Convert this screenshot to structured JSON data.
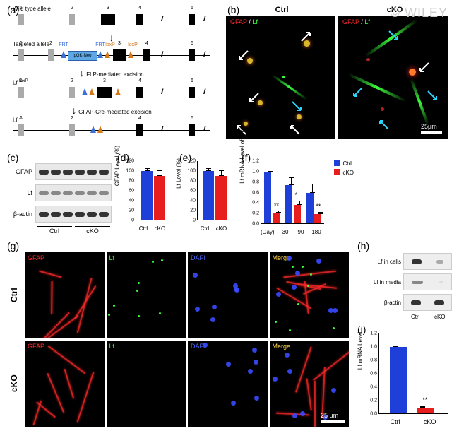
{
  "watermark": "© WILEY",
  "panel_a": {
    "rows": [
      {
        "title": "Wild type allele",
        "exons": [
          1,
          2,
          3,
          4,
          6
        ]
      },
      {
        "title": "Targeted allele",
        "neo": "pGK-Neo",
        "frt_label": "FRT",
        "loxp_label": "loxP"
      },
      {
        "title_html": "Lf loxP"
      },
      {
        "title_html": "Lf -/-"
      }
    ],
    "caption1": "FLP-mediated excision",
    "caption2": "GFAP-Cre-mediated excision"
  },
  "panel_b": {
    "titles": [
      "Ctrl",
      "cKO"
    ],
    "channel_gfap": "GFAP",
    "channel_lf": "Lf",
    "scalebar": "25µm",
    "gfap_color": "#ff2a2a",
    "lf_color": "#3aff3a",
    "arrow_white": "#ffffff",
    "arrow_cyan": "#29d6ff"
  },
  "panel_c": {
    "labels": [
      "GFAP",
      "Lf",
      "β-actin"
    ],
    "groups": [
      "Ctrl",
      "cKO"
    ]
  },
  "chart_de": {
    "ylabel_d": "GFAP Level (%)",
    "ylabel_e": "Lf Level (%)",
    "ymax": 120,
    "yticks": [
      0,
      20,
      40,
      60,
      80,
      100,
      120
    ],
    "ctrl": 100,
    "cko_d": 89,
    "cko_e": 89,
    "err_ctrl": 5,
    "err_cko": 12,
    "blue": "#1e3fd8",
    "red": "#e81e1e",
    "xlabels": [
      "Ctrl",
      "cKO"
    ]
  },
  "panel_f": {
    "ylabel": "Lf mRNA Level of Brain",
    "ymax": 1.2,
    "yticks": [
      "0.0",
      "0.2",
      "0.4",
      "0.6",
      "0.8",
      "1.0",
      "1.2"
    ],
    "days": [
      "30",
      "90",
      "180"
    ],
    "day_label": "(Day)",
    "ctrl": [
      1.0,
      0.74,
      0.58
    ],
    "cko": [
      0.2,
      0.36,
      0.18
    ],
    "ctrl_err": [
      0.03,
      0.15,
      0.18
    ],
    "cko_err": [
      0.04,
      0.08,
      0.04
    ],
    "sig": [
      "**",
      "*",
      "**"
    ],
    "legend": [
      "Ctrl",
      "cKO"
    ],
    "blue": "#1e3fd8",
    "red": "#e81e1e"
  },
  "panel_g": {
    "rows": [
      "Ctrl",
      "cKO"
    ],
    "channels": [
      "GFAP",
      "Lf",
      "DAPI",
      "Merge"
    ],
    "colors": {
      "GFAP": "#ff2a2a",
      "Lf": "#3aff3a",
      "DAPI": "#4a6aff",
      "Merge": "#ffd24a"
    },
    "scalebar": "25 µm"
  },
  "panel_h": {
    "labels": [
      "Lf in cells",
      "Lf in media",
      "β-actin"
    ],
    "groups": [
      "Ctrl",
      "cKO"
    ]
  },
  "panel_i": {
    "ylabel": "Lf mRNA Level",
    "ymax": 1.2,
    "yticks": [
      "0.0",
      "0.2",
      "0.4",
      "0.6",
      "0.8",
      "1.0",
      "1.2"
    ],
    "ctrl": 1.0,
    "cko": 0.08,
    "err_ctrl": 0.02,
    "err_cko": 0.03,
    "sig": "**",
    "xlabels": [
      "Ctrl",
      "cKO"
    ],
    "blue": "#1e3fd8",
    "red": "#e81e1e"
  },
  "labels": {
    "a": "(a)",
    "b": "(b)",
    "c": "(c)",
    "d": "(d)",
    "e": "(e)",
    "f": "(f)",
    "g": "(g)",
    "h": "(h)",
    "i": "(i)"
  }
}
